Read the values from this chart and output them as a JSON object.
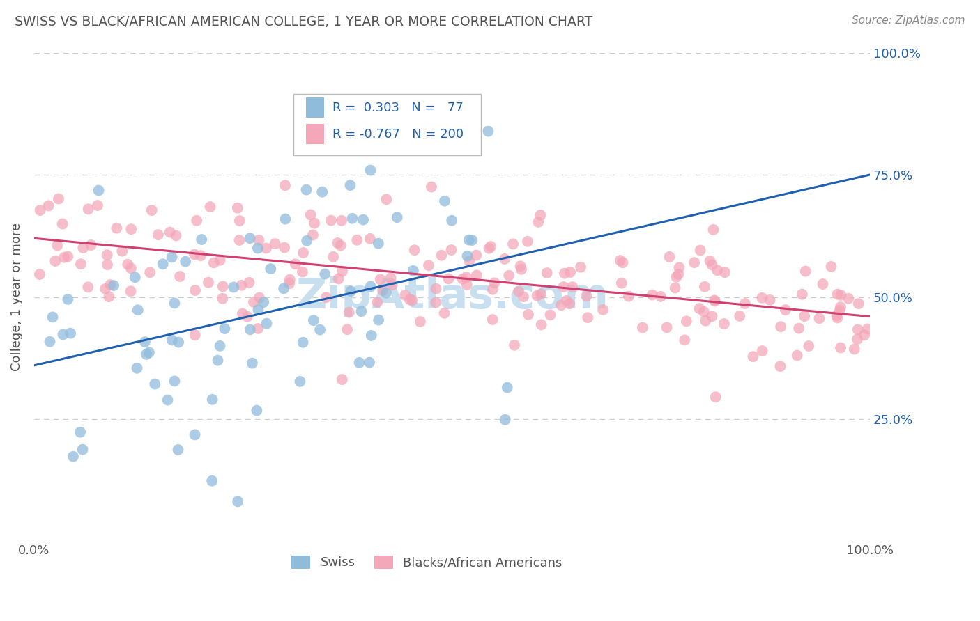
{
  "title": "SWISS VS BLACK/AFRICAN AMERICAN COLLEGE, 1 YEAR OR MORE CORRELATION CHART",
  "source": "Source: ZipAtlas.com",
  "ylabel": "College, 1 year or more",
  "xlim": [
    0,
    1
  ],
  "ylim": [
    0,
    1
  ],
  "blue_color": "#8fbcdb",
  "pink_color": "#f4a7b9",
  "blue_line_color": "#2060b0",
  "pink_line_color": "#d04070",
  "legend_text_color": "#2060b0",
  "title_color": "#555555",
  "source_color": "#888888",
  "watermark_color": "#c8dff0",
  "grid_color": "#cccccc",
  "background_color": "#ffffff",
  "swiss_N": 77,
  "swiss_R": 0.303,
  "black_N": 200,
  "black_R": -0.767,
  "blue_trend": [
    0.0,
    0.36,
    1.0,
    0.75
  ],
  "pink_trend": [
    0.0,
    0.62,
    1.0,
    0.46
  ]
}
